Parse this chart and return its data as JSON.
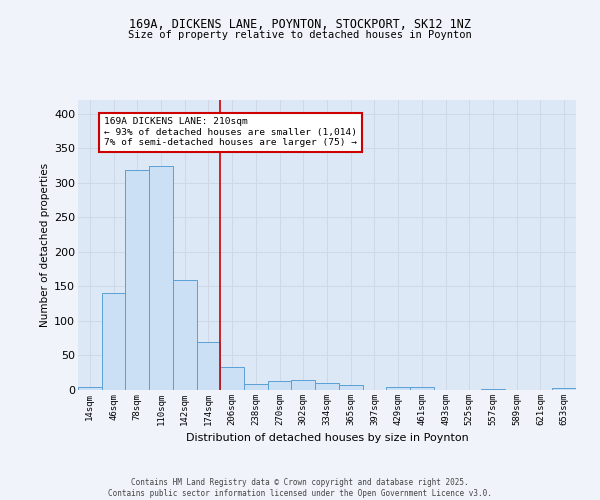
{
  "title1": "169A, DICKENS LANE, POYNTON, STOCKPORT, SK12 1NZ",
  "title2": "Size of property relative to detached houses in Poynton",
  "xlabel": "Distribution of detached houses by size in Poynton",
  "ylabel": "Number of detached properties",
  "categories": [
    "14sqm",
    "46sqm",
    "78sqm",
    "110sqm",
    "142sqm",
    "174sqm",
    "206sqm",
    "238sqm",
    "270sqm",
    "302sqm",
    "334sqm",
    "365sqm",
    "397sqm",
    "429sqm",
    "461sqm",
    "493sqm",
    "525sqm",
    "557sqm",
    "589sqm",
    "621sqm",
    "653sqm"
  ],
  "values": [
    4,
    140,
    318,
    325,
    160,
    70,
    33,
    9,
    13,
    14,
    10,
    7,
    0,
    5,
    4,
    0,
    0,
    2,
    0,
    0,
    3
  ],
  "bar_color": "#cce0f5",
  "bar_edge_color": "#5a9fd4",
  "grid_color": "#d0d8e8",
  "background_color": "#dce8f5",
  "fig_background_color": "#f0f4fa",
  "vline_x": 6,
  "annotation_text": "169A DICKENS LANE: 210sqm\n← 93% of detached houses are smaller (1,014)\n7% of semi-detached houses are larger (75) →",
  "annotation_box_color": "#ffffff",
  "annotation_box_edge": "#cc0000",
  "vline_color": "#cc0000",
  "footer": "Contains HM Land Registry data © Crown copyright and database right 2025.\nContains public sector information licensed under the Open Government Licence v3.0.",
  "ylim": [
    0,
    420
  ],
  "yticks": [
    0,
    50,
    100,
    150,
    200,
    250,
    300,
    350,
    400
  ]
}
